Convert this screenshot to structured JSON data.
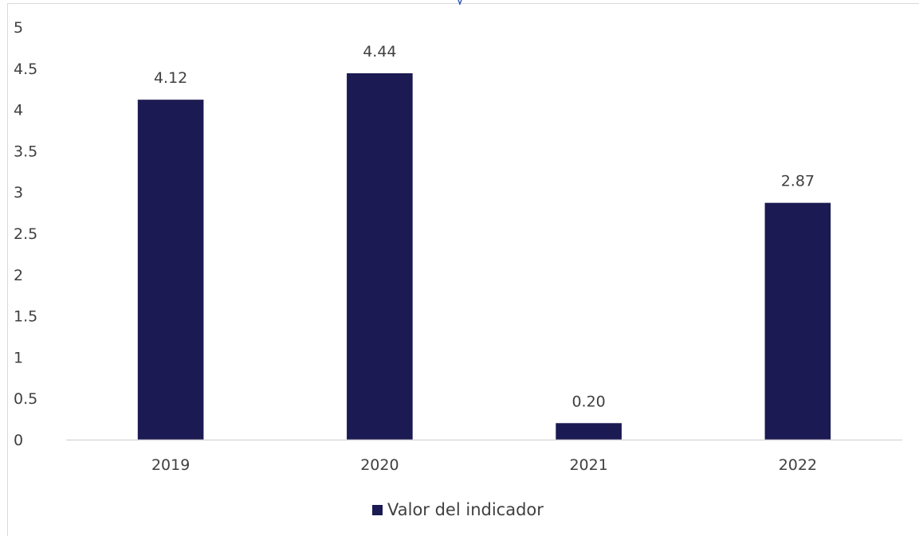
{
  "chart_data": {
    "type": "bar",
    "title": "",
    "xlabel": "",
    "ylabel": "",
    "categories": [
      "2019",
      "2020",
      "2021",
      "2022"
    ],
    "series": [
      {
        "name": "Valor del indicador",
        "values": [
          4.12,
          4.44,
          0.2,
          2.87
        ],
        "data_labels": [
          "4.12",
          "4.44",
          "0.20",
          "2.87"
        ],
        "color": "#1c1a52"
      }
    ],
    "ylim": [
      0,
      5
    ],
    "y_ticks": [
      "0",
      "0.5",
      "1",
      "1.5",
      "2",
      "2.5",
      "3",
      "3.5",
      "4",
      "4.5",
      "5"
    ],
    "grid": false,
    "legend_position": "bottom",
    "colors": {
      "axis": "#d9d9d9",
      "text": "#404040",
      "title_fragment": "#2f55b5"
    }
  },
  "legend": {
    "label": "Valor del indicador"
  }
}
